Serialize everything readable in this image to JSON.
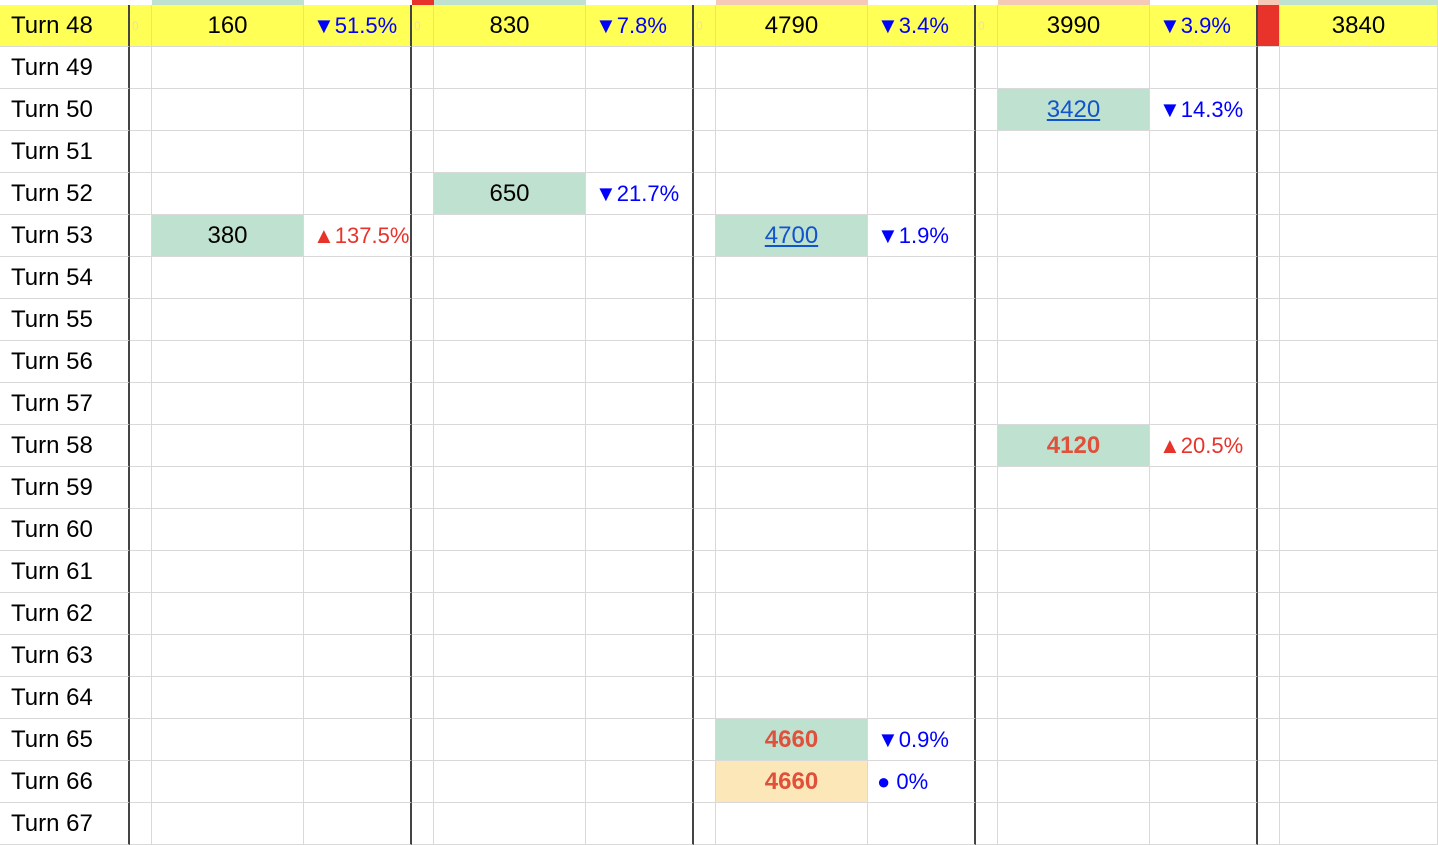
{
  "colors": {
    "highlight_row": "#ffff55",
    "filled_green": "#bfe1cf",
    "filled_amber": "#fbe7b8",
    "red_marker": "#e8332a",
    "down_text": "#0000ff",
    "up_text": "#e8332a",
    "link_text": "#1155cc",
    "hot_text": "#e0503a"
  },
  "rows": [
    {
      "label": "Turn 48",
      "highlight": true,
      "cells": [
        {
          "value": "160",
          "change": "▼51.5%",
          "dir": "down"
        },
        {
          "value": "830",
          "change": "▼7.8%",
          "dir": "down"
        },
        {
          "value": "4790",
          "change": "▼3.4%",
          "dir": "down"
        },
        {
          "value": "3990",
          "change": "▼3.9%",
          "dir": "down"
        },
        {
          "value": "3840"
        }
      ]
    },
    {
      "label": "Turn 49",
      "cells": []
    },
    {
      "label": "Turn 50",
      "cells": [
        null,
        null,
        null,
        {
          "value": "3420",
          "change": "▼14.3%",
          "dir": "down",
          "style": "link",
          "fill": "green"
        }
      ]
    },
    {
      "label": "Turn 51",
      "cells": []
    },
    {
      "label": "Turn 52",
      "cells": [
        null,
        {
          "value": "650",
          "change": "▼21.7%",
          "dir": "down",
          "fill": "green"
        }
      ]
    },
    {
      "label": "Turn 53",
      "cells": [
        {
          "value": "380",
          "change": "▲137.5%",
          "dir": "up",
          "fill": "green"
        },
        null,
        {
          "value": "4700",
          "change": "▼1.9%",
          "dir": "down",
          "style": "link",
          "fill": "green"
        }
      ]
    },
    {
      "label": "Turn 54",
      "cells": []
    },
    {
      "label": "Turn 55",
      "cells": []
    },
    {
      "label": "Turn 56",
      "cells": []
    },
    {
      "label": "Turn 57",
      "cells": []
    },
    {
      "label": "Turn 58",
      "cells": [
        null,
        null,
        null,
        {
          "value": "4120",
          "change": "▲20.5%",
          "dir": "up",
          "style": "hot",
          "fill": "green"
        }
      ]
    },
    {
      "label": "Turn 59",
      "cells": []
    },
    {
      "label": "Turn 60",
      "cells": []
    },
    {
      "label": "Turn 61",
      "cells": []
    },
    {
      "label": "Turn 62",
      "cells": []
    },
    {
      "label": "Turn 63",
      "cells": []
    },
    {
      "label": "Turn 64",
      "cells": []
    },
    {
      "label": "Turn 65",
      "cells": [
        null,
        null,
        {
          "value": "4660",
          "change": "▼0.9%",
          "dir": "down",
          "style": "hot",
          "fill": "green"
        }
      ]
    },
    {
      "label": "Turn 66",
      "cells": [
        null,
        null,
        {
          "value": "4660",
          "change": "● 0%",
          "dir": "down",
          "style": "hot",
          "fill": "amber"
        }
      ]
    },
    {
      "label": "Turn 67",
      "cells": []
    }
  ],
  "highlight_gap_text": "0"
}
